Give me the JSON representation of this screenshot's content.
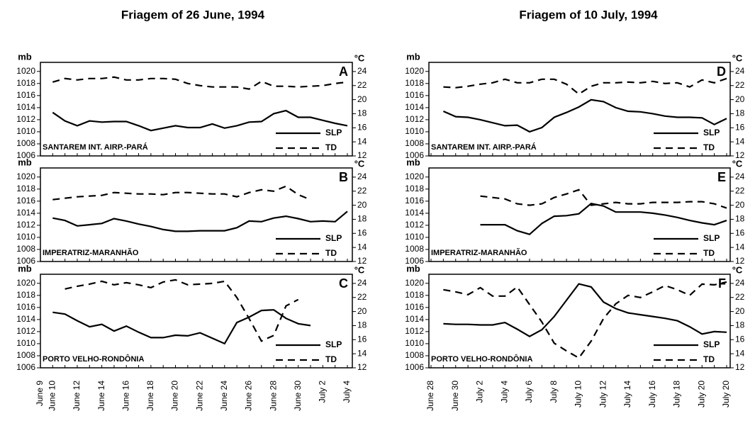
{
  "chart_data": [
    {
      "type": "line",
      "title": "Friagem of 26 June, 1994",
      "categories": [
        "June 9",
        "June 10",
        null,
        "June 12",
        null,
        "June 14",
        null,
        "June 16",
        null,
        "June 18",
        null,
        "June 20",
        null,
        "June 22",
        null,
        "June 24",
        null,
        "June 26",
        null,
        "June 28",
        null,
        "June 30",
        null,
        "July 2",
        null,
        "July 4"
      ],
      "ylabel": "mb",
      "ylim": [
        1006,
        1021.5
      ],
      "yticks": [
        1006,
        1008,
        1010,
        1012,
        1014,
        1016,
        1018,
        1020
      ],
      "y2label": "°C",
      "y2lim": [
        12,
        25.3
      ],
      "y2ticks": [
        12,
        14,
        16,
        18,
        20,
        22,
        24
      ],
      "panels": [
        {
          "letter": "A",
          "station": "SANTAREM  INT. AIRP.-PARÁ",
          "series": [
            {
              "name": "SLP",
              "color": "#000000",
              "line_style": "solid",
              "values": [
                null,
                1013.2,
                1011.8,
                1011,
                1011.8,
                1011.6,
                1011.7,
                1011.7,
                1011,
                1010.2,
                1010.6,
                1011,
                1010.7,
                1010.7,
                1011.3,
                1010.6,
                1011,
                1011.6,
                1011.7,
                1013,
                1013.5,
                1012.4,
                1012.4,
                1011.9,
                1011.4,
                1011
              ]
            },
            {
              "name": "TD",
              "color": "#000000",
              "line_style": "dashed",
              "axis": "y2",
              "values": [
                null,
                22.5,
                23,
                22.8,
                23,
                23,
                23.2,
                22.8,
                22.8,
                23,
                23,
                22.9,
                22.3,
                22,
                21.8,
                21.8,
                21.8,
                21.5,
                22.6,
                21.9,
                21.9,
                21.8,
                21.9,
                22,
                22.3,
                22.5
              ]
            }
          ]
        },
        {
          "letter": "B",
          "station": "IMPERATRIZ-MARANHÃO",
          "series": [
            {
              "name": "SLP",
              "color": "#000000",
              "line_style": "solid",
              "values": [
                null,
                1013.2,
                1012.8,
                1011.9,
                1012.1,
                1012.3,
                1013.1,
                1012.7,
                1012.2,
                1011.8,
                1011.3,
                1011,
                1011,
                1011.1,
                1011.1,
                1011.1,
                1011.6,
                1012.7,
                1012.6,
                1013.2,
                1013.5,
                1013.1,
                1012.6,
                1012.7,
                1012.6,
                1014.3
              ]
            },
            {
              "name": "TD",
              "color": "#000000",
              "line_style": "dashed",
              "axis": "y2",
              "values": [
                null,
                20.8,
                21,
                21.2,
                21.3,
                21.4,
                21.8,
                21.7,
                21.6,
                21.6,
                21.5,
                21.8,
                21.8,
                21.7,
                21.6,
                21.6,
                21.2,
                21.8,
                22.2,
                22,
                22.7,
                21.5,
                20.8,
                null,
                null,
                null
              ]
            }
          ]
        },
        {
          "letter": "C",
          "station": "PORTO VELHO-RONDÔNIA",
          "series": [
            {
              "name": "SLP",
              "color": "#000000",
              "line_style": "solid",
              "values": [
                null,
                1015.2,
                1014.9,
                1013.8,
                1012.8,
                1013.2,
                1012.1,
                1012.9,
                1011.9,
                1011,
                1011,
                1011.4,
                1011.3,
                1011.8,
                1010.9,
                1010,
                1013.5,
                1014.4,
                1015.5,
                1015.6,
                1014.2,
                1013.3,
                1013,
                null,
                null,
                null
              ]
            },
            {
              "name": "TD",
              "color": "#000000",
              "line_style": "dashed",
              "axis": "y2",
              "values": [
                null,
                null,
                23.2,
                23.6,
                23.9,
                24.3,
                23.8,
                24.1,
                23.8,
                23.4,
                24.2,
                24.5,
                23.8,
                23.9,
                24,
                24.3,
                22,
                19,
                15.8,
                16.6,
                20.8,
                21.7,
                null,
                null,
                null,
                null
              ]
            }
          ]
        }
      ]
    },
    {
      "type": "line",
      "title": "Friagem of 10 July, 1994",
      "categories": [
        "June 28",
        null,
        "June 30",
        null,
        "July 2",
        null,
        "July 4",
        null,
        "July 6",
        null,
        "July 8",
        null,
        "July 10",
        null,
        "July 12",
        null,
        "July 14",
        null,
        "July 16",
        null,
        "July 18",
        null,
        "July 20",
        null,
        "July 20"
      ],
      "ylabel": "mb",
      "ylim": [
        1006,
        1021.5
      ],
      "yticks": [
        1006,
        1008,
        1010,
        1012,
        1014,
        1016,
        1018,
        1020
      ],
      "y2label": "°C",
      "y2lim": [
        12,
        25.3
      ],
      "y2ticks": [
        12,
        14,
        16,
        18,
        20,
        22,
        24
      ],
      "panels": [
        {
          "letter": "D",
          "station": "SANTAREM  INT. AIRP.-PARÁ",
          "series": [
            {
              "name": "SLP",
              "color": "#000000",
              "line_style": "solid",
              "values": [
                null,
                1013.4,
                1012.5,
                1012.4,
                1012,
                1011.5,
                1011,
                1011.1,
                1010,
                1010.7,
                1012.4,
                1013.2,
                1014.1,
                1015.3,
                1015,
                1014,
                1013.4,
                1013.3,
                1013,
                1012.6,
                1012.4,
                1012.4,
                1012.3,
                1011.2,
                1012.2
              ]
            },
            {
              "name": "TD",
              "color": "#000000",
              "line_style": "dashed",
              "axis": "y2",
              "values": [
                null,
                21.8,
                21.7,
                21.9,
                22.2,
                22.4,
                22.9,
                22.4,
                22.4,
                22.9,
                22.9,
                22.2,
                20.8,
                21.9,
                22.4,
                22.4,
                22.5,
                22.4,
                22.6,
                22.3,
                22.4,
                21.8,
                22.8,
                22.4,
                23
              ]
            }
          ]
        },
        {
          "letter": "E",
          "station": "IMPERATRIZ-MARANHÃO",
          "series": [
            {
              "name": "SLP",
              "color": "#000000",
              "line_style": "solid",
              "values": [
                null,
                null,
                null,
                null,
                1012.1,
                1012.1,
                1012.1,
                1011.1,
                1010.5,
                1012.3,
                1013.5,
                1013.6,
                1013.9,
                1015.6,
                1015.2,
                1014.2,
                1014.2,
                1014.2,
                1014,
                1013.7,
                1013.3,
                1012.8,
                1012.4,
                1012.1,
                1012.8
              ]
            },
            {
              "name": "TD",
              "color": "#000000",
              "line_style": "dashed",
              "axis": "y2",
              "values": [
                null,
                null,
                null,
                null,
                21.3,
                21.1,
                20.9,
                20.2,
                20,
                20.2,
                21.1,
                21.6,
                22.2,
                20,
                20.2,
                20.4,
                20.2,
                20.2,
                20.4,
                20.4,
                20.4,
                20.5,
                20.5,
                20.2,
                19.6
              ]
            }
          ]
        },
        {
          "letter": "F",
          "station": "PORTO VELHO-RONDÔNIA",
          "series": [
            {
              "name": "SLP",
              "color": "#000000",
              "line_style": "solid",
              "values": [
                null,
                1013.3,
                1013.2,
                1013.2,
                1013.1,
                1013.1,
                1013.5,
                1012.4,
                1011.2,
                1012.3,
                1014.5,
                1017.2,
                1019.9,
                1019.4,
                1016.9,
                1015.8,
                1015.1,
                1014.8,
                1014.5,
                1014.2,
                1013.8,
                1012.8,
                1011.6,
                1012,
                1011.9
              ]
            },
            {
              "name": "TD",
              "color": "#000000",
              "line_style": "dashed",
              "axis": "y2",
              "values": [
                null,
                23.1,
                22.8,
                22.4,
                23.4,
                22.2,
                22.2,
                23.5,
                21,
                18.5,
                15.5,
                14.4,
                13.4,
                15.8,
                19,
                21.1,
                22.3,
                22,
                22.8,
                23.7,
                23.1,
                22.3,
                23.9,
                23.8,
                24.2
              ]
            }
          ]
        }
      ]
    }
  ]
}
